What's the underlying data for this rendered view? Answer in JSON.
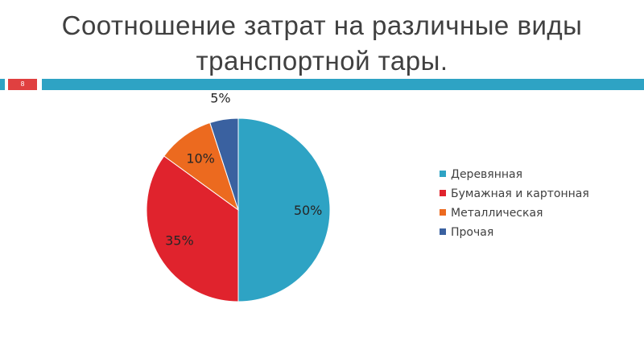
{
  "slide": {
    "title_line1": "Соотношение затрат на различные виды",
    "title_line2": "транспортной тары.",
    "slide_number": "8"
  },
  "colors": {
    "accent_bar": "#2ea3c4",
    "number_box": "#e04040"
  },
  "chart_data": {
    "type": "pie",
    "title": "",
    "legend_position": "right",
    "slices": [
      {
        "name": "Деревянная",
        "value": 50,
        "label": "50%",
        "color": "#2ea3c4"
      },
      {
        "name": "Бумажная и картонная",
        "value": 35,
        "label": "35%",
        "color": "#e0232d"
      },
      {
        "name": "Металлическая",
        "value": 10,
        "label": "10%",
        "color": "#ec6a1f"
      },
      {
        "name": "Прочая",
        "value": 5,
        "label": "5%",
        "color": "#3a61a0"
      }
    ]
  }
}
